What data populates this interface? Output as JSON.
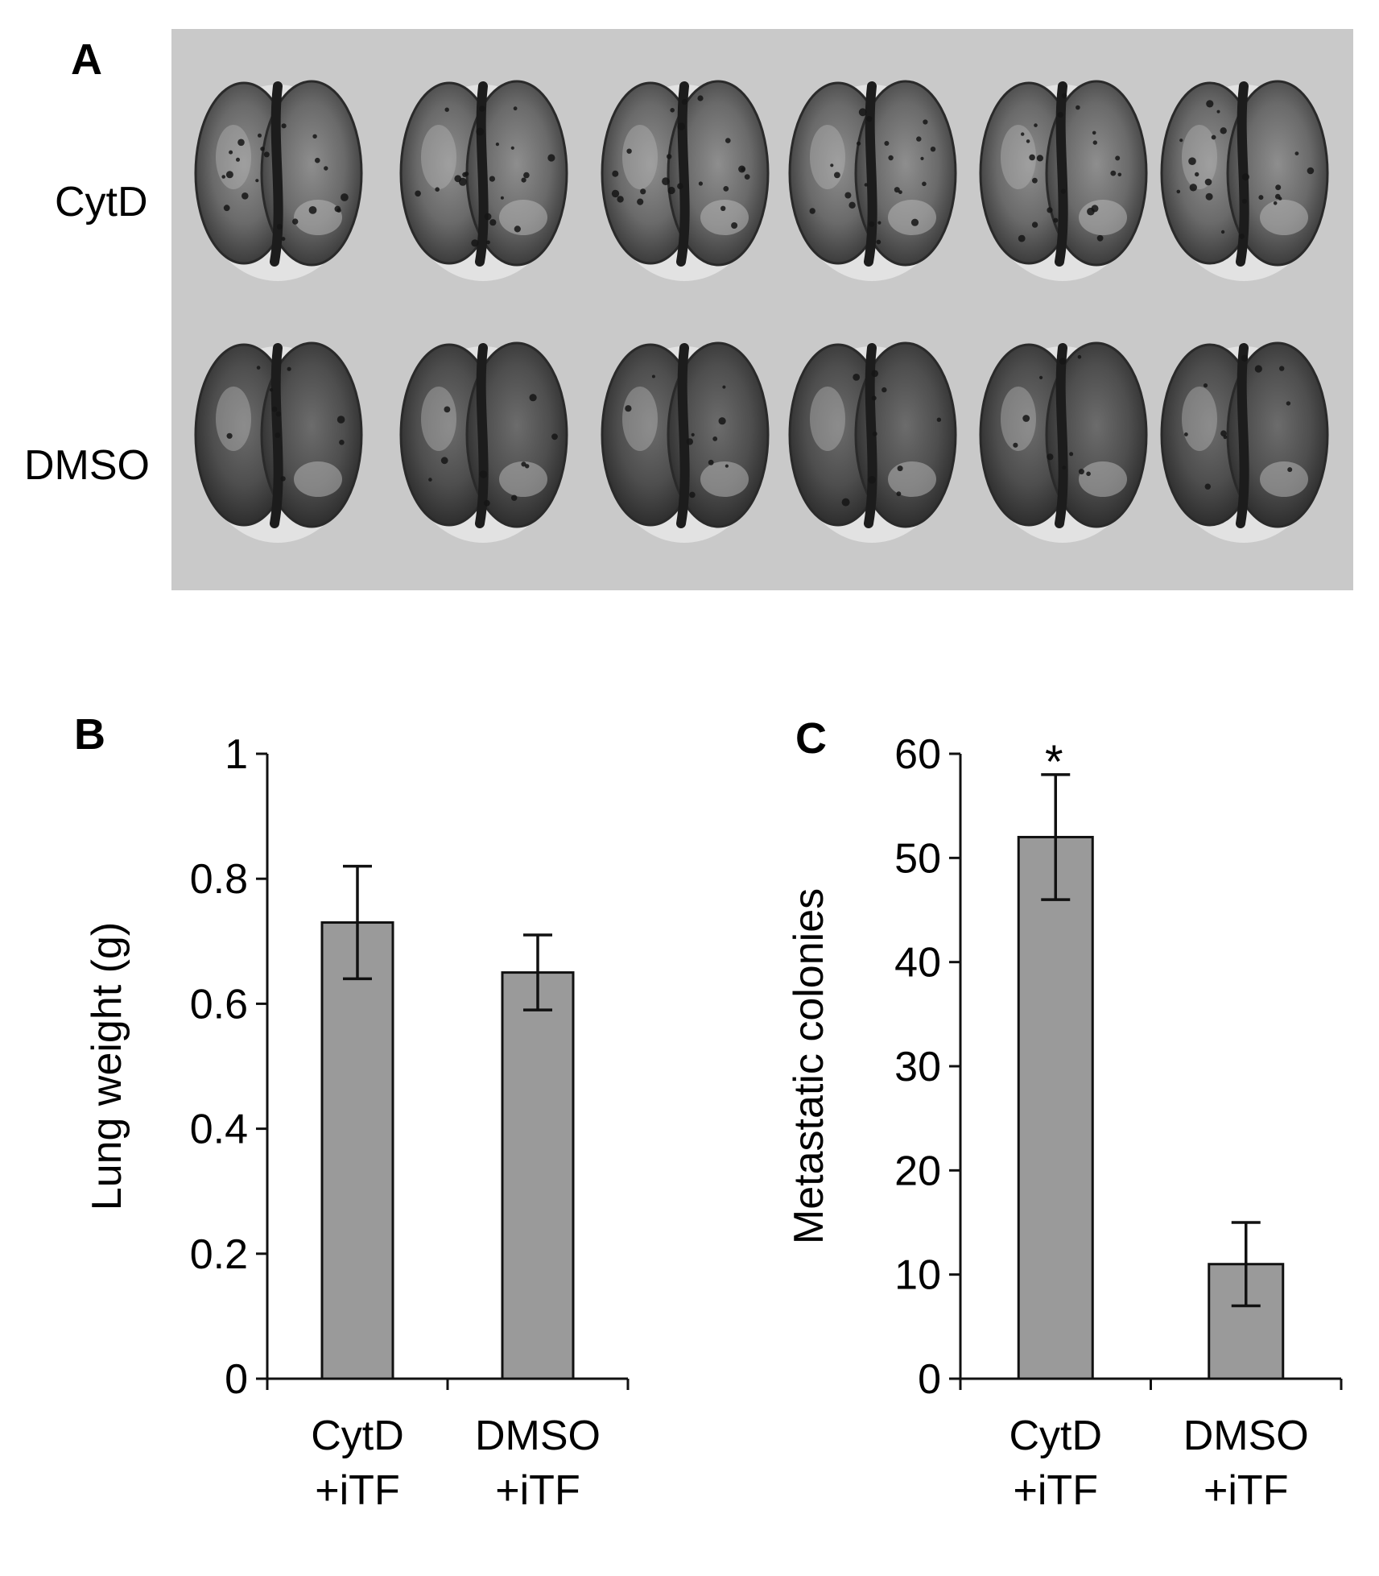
{
  "panel_a": {
    "letter": "A",
    "rows": [
      {
        "label": "CytD",
        "count": 6
      },
      {
        "label": "DMSO",
        "count": 6
      }
    ]
  },
  "chart_data": [
    {
      "panel": "B",
      "type": "bar",
      "categories": [
        [
          "CytD",
          "+iTF"
        ],
        [
          "DMSO",
          "+iTF"
        ]
      ],
      "values": [
        0.73,
        0.65
      ],
      "errors": [
        0.09,
        0.06
      ],
      "ylabel": "Lung weight (g)",
      "ylim": [
        0,
        1
      ],
      "yticks": [
        0,
        0.2,
        0.4,
        0.6,
        0.8,
        1
      ],
      "ytick_labels": [
        "0",
        "0.2",
        "0.4",
        "0.6",
        "0.8",
        "1"
      ],
      "annotations": [],
      "bar_color": "#9a9a9a"
    },
    {
      "panel": "C",
      "type": "bar",
      "categories": [
        [
          "CytD",
          "+iTF"
        ],
        [
          "DMSO",
          "+iTF"
        ]
      ],
      "values": [
        52,
        11
      ],
      "errors": [
        6,
        4
      ],
      "ylabel": "Metastatic colonies",
      "ylim": [
        0,
        60
      ],
      "yticks": [
        0,
        10,
        20,
        30,
        40,
        50,
        60
      ],
      "ytick_labels": [
        "0",
        "10",
        "20",
        "30",
        "40",
        "50",
        "60"
      ],
      "annotations": [
        {
          "category_index": 0,
          "text": "*"
        }
      ],
      "bar_color": "#9a9a9a"
    }
  ]
}
